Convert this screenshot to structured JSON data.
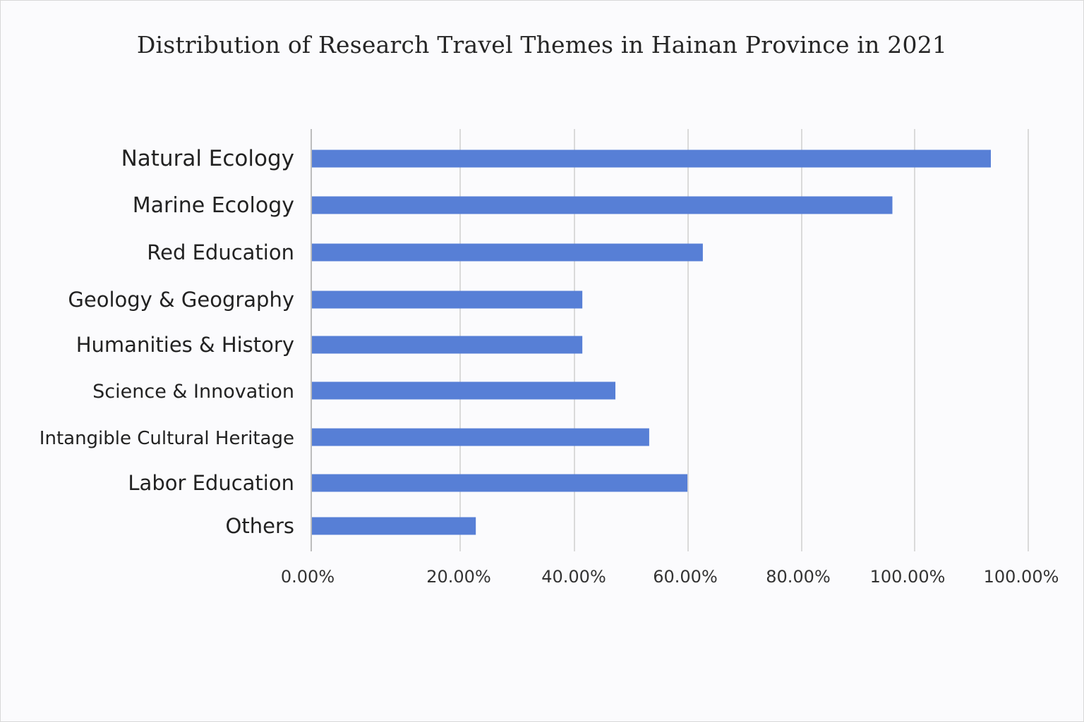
{
  "chart_data": {
    "type": "bar",
    "orientation": "horizontal",
    "title": "Distribution of Research Travel Themes in Hainan Province in 2021",
    "categories": [
      "Natural Ecology",
      "Marine Ecology",
      "Red Education",
      "Geology & Geography",
      "Humanities & History",
      "Science & Innovation",
      "Intangible Cultural Heritage",
      "Labor Education",
      "Others"
    ],
    "values": [
      92.5,
      79.1,
      53.3,
      36.9,
      36.9,
      41.4,
      46.0,
      51.2,
      22.4
    ],
    "x_ticks": [
      "0.00%",
      "20.00%",
      "40.00%",
      "60.00%",
      "80.00%",
      "100.00%",
      "100.00%"
    ],
    "xlabel": "",
    "ylabel": "",
    "grid": true,
    "legend": "none",
    "bar_color": "#577fd6"
  }
}
